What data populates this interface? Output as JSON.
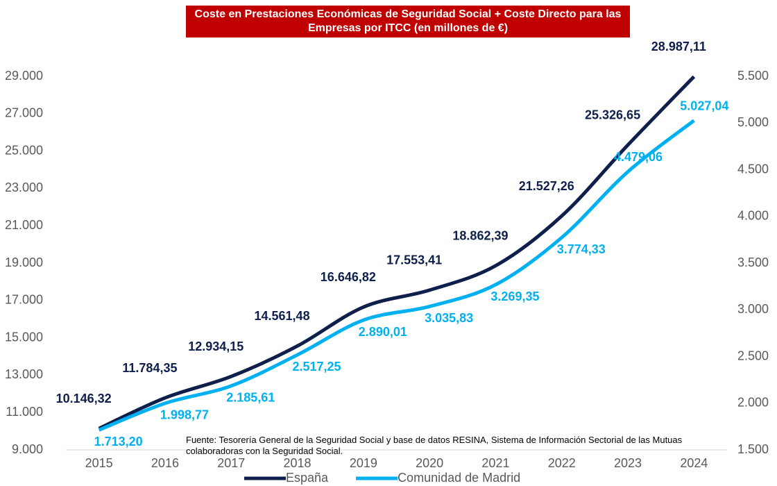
{
  "chart_data": {
    "type": "line",
    "title": "Coste en Prestaciones Económicas de Seguridad Social + Coste Directo para las Empresas por ITCC (en millones de €)",
    "annotation": "Fuente: Tesorería General de la Seguridad Social y base de datos RESINA, Sistema de Información Sectorial de las Mutuas colaboradoras con la Seguridad Social.",
    "categories": [
      "2015",
      "2016",
      "2017",
      "2018",
      "2019",
      "2020",
      "2021",
      "2022",
      "2023",
      "2024"
    ],
    "series": [
      {
        "name": "España",
        "color": "#0d1f4a",
        "axis": "y",
        "values": [
          10146.32,
          11784.35,
          12934.15,
          14561.48,
          16646.82,
          17553.41,
          18862.39,
          21527.26,
          25326.65,
          28987.11
        ],
        "value_labels": [
          "10.146,32",
          "11.784,35",
          "12.934,15",
          "14.561,48",
          "16.646,82",
          "17.553,41",
          "18.862,39",
          "21.527,26",
          "25.326,65",
          "28.987,11"
        ]
      },
      {
        "name": "Comunidad de Madrid",
        "color": "#00b0f0",
        "axis": "y2",
        "values": [
          1713.2,
          1998.77,
          2185.61,
          2517.25,
          2890.01,
          3035.83,
          3269.35,
          3774.33,
          4479.06,
          5027.04
        ],
        "value_labels": [
          "1.713,20",
          "1.998,77",
          "2.185,61",
          "2.517,25",
          "2.890,01",
          "3.035,83",
          "3.269,35",
          "3.774,33",
          "4.479,06",
          "5.027,04"
        ]
      }
    ],
    "ylim": [
      9000,
      29000
    ],
    "yticks": [
      {
        "value": 9000,
        "label": "9.000"
      },
      {
        "value": 11000,
        "label": "11.000"
      },
      {
        "value": 13000,
        "label": "13.000"
      },
      {
        "value": 15000,
        "label": "15.000"
      },
      {
        "value": 17000,
        "label": "17.000"
      },
      {
        "value": 19000,
        "label": "19.000"
      },
      {
        "value": 21000,
        "label": "21.000"
      },
      {
        "value": 23000,
        "label": "23.000"
      },
      {
        "value": 25000,
        "label": "25.000"
      },
      {
        "value": 27000,
        "label": "27.000"
      },
      {
        "value": 29000,
        "label": "29.000"
      }
    ],
    "y2lim": [
      1500,
      5500
    ],
    "y2ticks": [
      {
        "value": 1500,
        "label": "1.500"
      },
      {
        "value": 2000,
        "label": "2.000"
      },
      {
        "value": 2500,
        "label": "2.500"
      },
      {
        "value": 3000,
        "label": "3.000"
      },
      {
        "value": 3500,
        "label": "3.500"
      },
      {
        "value": 4000,
        "label": "4.000"
      },
      {
        "value": 4500,
        "label": "4.500"
      },
      {
        "value": 5000,
        "label": "5.000"
      },
      {
        "value": 5500,
        "label": "5.500"
      }
    ],
    "legend": "bottom"
  }
}
